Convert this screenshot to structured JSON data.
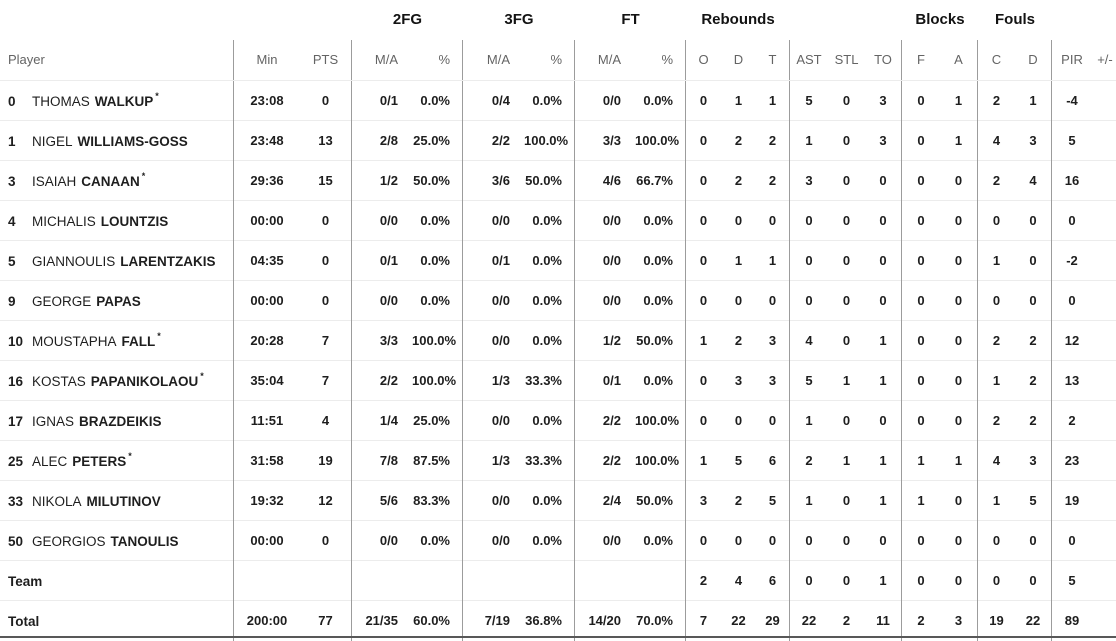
{
  "table": {
    "group_headers": [
      "2FG",
      "3FG",
      "FT",
      "Rebounds",
      "Blocks",
      "Fouls"
    ],
    "columns": {
      "player": "Player",
      "min": "Min",
      "pts": "PTS",
      "ma": "M/A",
      "pct": "%",
      "reb_o": "O",
      "reb_d": "D",
      "reb_t": "T",
      "ast": "AST",
      "stl": "STL",
      "to": "TO",
      "blk_f": "F",
      "blk_a": "A",
      "foul_c": "C",
      "foul_d": "D",
      "pir": "PIR",
      "plus_minus": "+/-"
    },
    "starter_marker": "*",
    "rows": [
      {
        "number": "0",
        "first": "THOMAS",
        "last": "WALKUP",
        "starter": true,
        "min": "23:08",
        "pts": "0",
        "fg2_ma": "0/1",
        "fg2_pct": "0.0%",
        "fg3_ma": "0/4",
        "fg3_pct": "0.0%",
        "ft_ma": "0/0",
        "ft_pct": "0.0%",
        "reb_o": "0",
        "reb_d": "1",
        "reb_t": "1",
        "ast": "5",
        "stl": "0",
        "to": "3",
        "blk_f": "0",
        "blk_a": "1",
        "foul_c": "2",
        "foul_d": "1",
        "pir": "-4",
        "pm": ""
      },
      {
        "number": "1",
        "first": "NIGEL",
        "last": "WILLIAMS-GOSS",
        "starter": false,
        "min": "23:48",
        "pts": "13",
        "fg2_ma": "2/8",
        "fg2_pct": "25.0%",
        "fg3_ma": "2/2",
        "fg3_pct": "100.0%",
        "ft_ma": "3/3",
        "ft_pct": "100.0%",
        "reb_o": "0",
        "reb_d": "2",
        "reb_t": "2",
        "ast": "1",
        "stl": "0",
        "to": "3",
        "blk_f": "0",
        "blk_a": "1",
        "foul_c": "4",
        "foul_d": "3",
        "pir": "5",
        "pm": ""
      },
      {
        "number": "3",
        "first": "ISAIAH",
        "last": "CANAAN",
        "starter": true,
        "min": "29:36",
        "pts": "15",
        "fg2_ma": "1/2",
        "fg2_pct": "50.0%",
        "fg3_ma": "3/6",
        "fg3_pct": "50.0%",
        "ft_ma": "4/6",
        "ft_pct": "66.7%",
        "reb_o": "0",
        "reb_d": "2",
        "reb_t": "2",
        "ast": "3",
        "stl": "0",
        "to": "0",
        "blk_f": "0",
        "blk_a": "0",
        "foul_c": "2",
        "foul_d": "4",
        "pir": "16",
        "pm": ""
      },
      {
        "number": "4",
        "first": "MICHALIS",
        "last": "LOUNTZIS",
        "starter": false,
        "min": "00:00",
        "pts": "0",
        "fg2_ma": "0/0",
        "fg2_pct": "0.0%",
        "fg3_ma": "0/0",
        "fg3_pct": "0.0%",
        "ft_ma": "0/0",
        "ft_pct": "0.0%",
        "reb_o": "0",
        "reb_d": "0",
        "reb_t": "0",
        "ast": "0",
        "stl": "0",
        "to": "0",
        "blk_f": "0",
        "blk_a": "0",
        "foul_c": "0",
        "foul_d": "0",
        "pir": "0",
        "pm": ""
      },
      {
        "number": "5",
        "first": "GIANNOULIS",
        "last": "LARENTZAKIS",
        "starter": false,
        "min": "04:35",
        "pts": "0",
        "fg2_ma": "0/1",
        "fg2_pct": "0.0%",
        "fg3_ma": "0/1",
        "fg3_pct": "0.0%",
        "ft_ma": "0/0",
        "ft_pct": "0.0%",
        "reb_o": "0",
        "reb_d": "1",
        "reb_t": "1",
        "ast": "0",
        "stl": "0",
        "to": "0",
        "blk_f": "0",
        "blk_a": "0",
        "foul_c": "1",
        "foul_d": "0",
        "pir": "-2",
        "pm": ""
      },
      {
        "number": "9",
        "first": "GEORGE",
        "last": "PAPAS",
        "starter": false,
        "min": "00:00",
        "pts": "0",
        "fg2_ma": "0/0",
        "fg2_pct": "0.0%",
        "fg3_ma": "0/0",
        "fg3_pct": "0.0%",
        "ft_ma": "0/0",
        "ft_pct": "0.0%",
        "reb_o": "0",
        "reb_d": "0",
        "reb_t": "0",
        "ast": "0",
        "stl": "0",
        "to": "0",
        "blk_f": "0",
        "blk_a": "0",
        "foul_c": "0",
        "foul_d": "0",
        "pir": "0",
        "pm": ""
      },
      {
        "number": "10",
        "first": "MOUSTAPHA",
        "last": "FALL",
        "starter": true,
        "min": "20:28",
        "pts": "7",
        "fg2_ma": "3/3",
        "fg2_pct": "100.0%",
        "fg3_ma": "0/0",
        "fg3_pct": "0.0%",
        "ft_ma": "1/2",
        "ft_pct": "50.0%",
        "reb_o": "1",
        "reb_d": "2",
        "reb_t": "3",
        "ast": "4",
        "stl": "0",
        "to": "1",
        "blk_f": "0",
        "blk_a": "0",
        "foul_c": "2",
        "foul_d": "2",
        "pir": "12",
        "pm": ""
      },
      {
        "number": "16",
        "first": "KOSTAS",
        "last": "PAPANIKOLAOU",
        "starter": true,
        "min": "35:04",
        "pts": "7",
        "fg2_ma": "2/2",
        "fg2_pct": "100.0%",
        "fg3_ma": "1/3",
        "fg3_pct": "33.3%",
        "ft_ma": "0/1",
        "ft_pct": "0.0%",
        "reb_o": "0",
        "reb_d": "3",
        "reb_t": "3",
        "ast": "5",
        "stl": "1",
        "to": "1",
        "blk_f": "0",
        "blk_a": "0",
        "foul_c": "1",
        "foul_d": "2",
        "pir": "13",
        "pm": ""
      },
      {
        "number": "17",
        "first": "IGNAS",
        "last": "BRAZDEIKIS",
        "starter": false,
        "min": "11:51",
        "pts": "4",
        "fg2_ma": "1/4",
        "fg2_pct": "25.0%",
        "fg3_ma": "0/0",
        "fg3_pct": "0.0%",
        "ft_ma": "2/2",
        "ft_pct": "100.0%",
        "reb_o": "0",
        "reb_d": "0",
        "reb_t": "0",
        "ast": "1",
        "stl": "0",
        "to": "0",
        "blk_f": "0",
        "blk_a": "0",
        "foul_c": "2",
        "foul_d": "2",
        "pir": "2",
        "pm": ""
      },
      {
        "number": "25",
        "first": "ALEC",
        "last": "PETERS",
        "starter": true,
        "min": "31:58",
        "pts": "19",
        "fg2_ma": "7/8",
        "fg2_pct": "87.5%",
        "fg3_ma": "1/3",
        "fg3_pct": "33.3%",
        "ft_ma": "2/2",
        "ft_pct": "100.0%",
        "reb_o": "1",
        "reb_d": "5",
        "reb_t": "6",
        "ast": "2",
        "stl": "1",
        "to": "1",
        "blk_f": "1",
        "blk_a": "1",
        "foul_c": "4",
        "foul_d": "3",
        "pir": "23",
        "pm": ""
      },
      {
        "number": "33",
        "first": "NIKOLA",
        "last": "MILUTINOV",
        "starter": false,
        "min": "19:32",
        "pts": "12",
        "fg2_ma": "5/6",
        "fg2_pct": "83.3%",
        "fg3_ma": "0/0",
        "fg3_pct": "0.0%",
        "ft_ma": "2/4",
        "ft_pct": "50.0%",
        "reb_o": "3",
        "reb_d": "2",
        "reb_t": "5",
        "ast": "1",
        "stl": "0",
        "to": "1",
        "blk_f": "1",
        "blk_a": "0",
        "foul_c": "1",
        "foul_d": "5",
        "pir": "19",
        "pm": ""
      },
      {
        "number": "50",
        "first": "GEORGIOS",
        "last": "TANOULIS",
        "starter": false,
        "min": "00:00",
        "pts": "0",
        "fg2_ma": "0/0",
        "fg2_pct": "0.0%",
        "fg3_ma": "0/0",
        "fg3_pct": "0.0%",
        "ft_ma": "0/0",
        "ft_pct": "0.0%",
        "reb_o": "0",
        "reb_d": "0",
        "reb_t": "0",
        "ast": "0",
        "stl": "0",
        "to": "0",
        "blk_f": "0",
        "blk_a": "0",
        "foul_c": "0",
        "foul_d": "0",
        "pir": "0",
        "pm": ""
      },
      {
        "label": "Team",
        "min": "",
        "pts": "",
        "fg2_ma": "",
        "fg2_pct": "",
        "fg3_ma": "",
        "fg3_pct": "",
        "ft_ma": "",
        "ft_pct": "",
        "reb_o": "2",
        "reb_d": "4",
        "reb_t": "6",
        "ast": "0",
        "stl": "0",
        "to": "1",
        "blk_f": "0",
        "blk_a": "0",
        "foul_c": "0",
        "foul_d": "0",
        "pir": "5",
        "pm": ""
      },
      {
        "label": "Total",
        "min": "200:00",
        "pts": "77",
        "fg2_ma": "21/35",
        "fg2_pct": "60.0%",
        "fg3_ma": "7/19",
        "fg3_pct": "36.8%",
        "ft_ma": "14/20",
        "ft_pct": "70.0%",
        "reb_o": "7",
        "reb_d": "22",
        "reb_t": "29",
        "ast": "22",
        "stl": "2",
        "to": "11",
        "blk_f": "2",
        "blk_a": "3",
        "foul_c": "19",
        "foul_d": "22",
        "pir": "89",
        "pm": ""
      }
    ],
    "colors": {
      "text_dark": "#1e1e1e",
      "text_gray": "#646464",
      "divider_gray": "#9c9c9c",
      "row_line": "#ececec",
      "bottom_bar": "#585858",
      "background": "#ffffff"
    }
  }
}
